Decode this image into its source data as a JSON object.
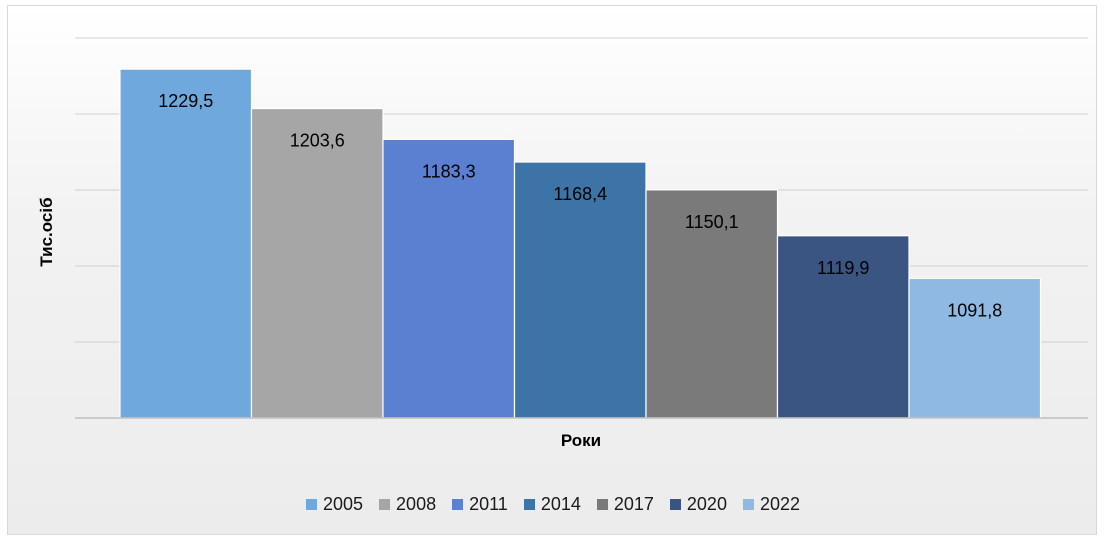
{
  "chart_data": {
    "type": "bar",
    "categories": [
      "2005",
      "2008",
      "2011",
      "2014",
      "2017",
      "2020",
      "2022"
    ],
    "values": [
      1229.5,
      1203.6,
      1183.3,
      1168.4,
      1150.1,
      1119.9,
      1091.8
    ],
    "value_labels": [
      "1229,5",
      "1203,6",
      "1183,3",
      "1168,4",
      "1150,1",
      "1119,9",
      "1091,8"
    ],
    "colors": [
      "#6fa8dc",
      "#a6a6a6",
      "#5b7fd1",
      "#3d74a8",
      "#7a7a7a",
      "#3a5582",
      "#8fb8e3"
    ],
    "xlabel": "Роки",
    "ylabel": "Тис.осіб",
    "ylim": [
      1000,
      1250
    ],
    "gridlines": true,
    "tick_labels_visible": false,
    "legend_position": "bottom",
    "legend": [
      "2005",
      "2008",
      "2011",
      "2014",
      "2017",
      "2020",
      "2022"
    ]
  }
}
